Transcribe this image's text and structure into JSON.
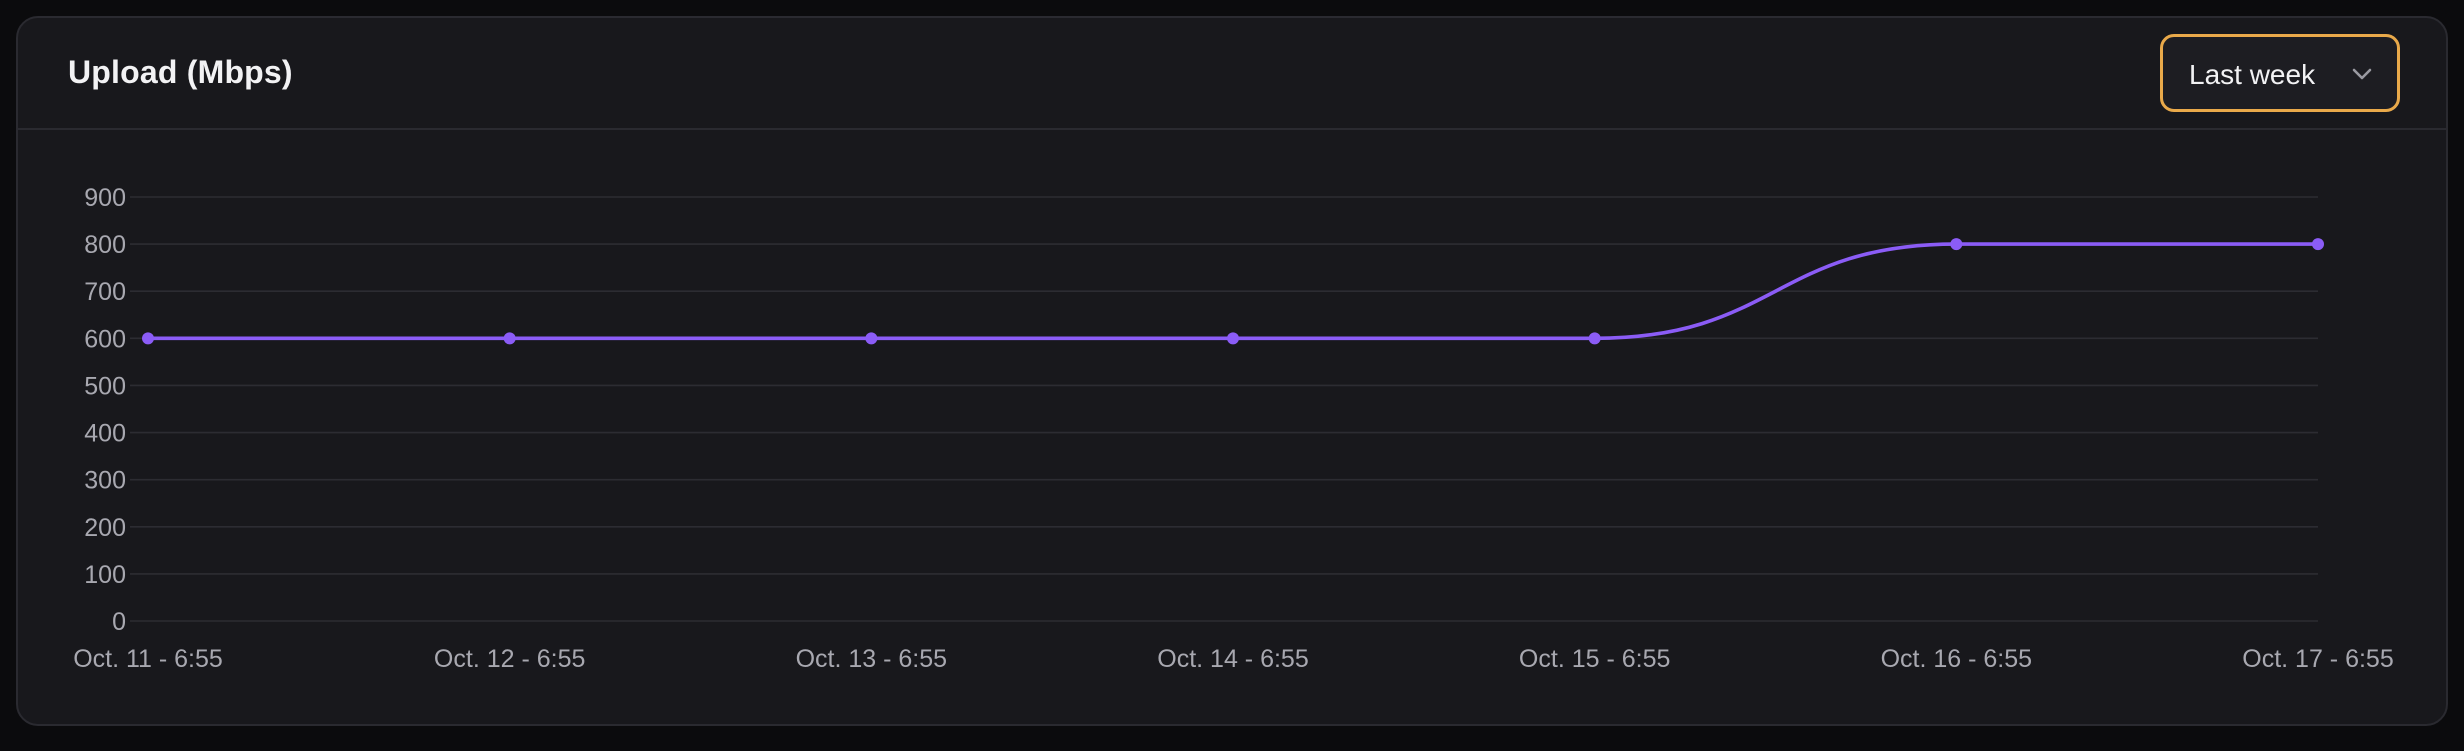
{
  "header": {
    "title": "Upload (Mbps)"
  },
  "range_select": {
    "selected": "Last week",
    "icon": "chevron-down-icon"
  },
  "colors": {
    "line": "#8b5cf6",
    "accent_border": "#e9a94a",
    "grid": "#2c2c32",
    "tick_label": "#a8a8b0"
  },
  "chart_data": {
    "type": "line",
    "title": "Upload (Mbps)",
    "xlabel": "",
    "ylabel": "",
    "categories": [
      "Oct. 11 - 6:55",
      "Oct. 12 - 6:55",
      "Oct. 13 - 6:55",
      "Oct. 14 - 6:55",
      "Oct. 15 - 6:55",
      "Oct. 16 - 6:55",
      "Oct. 17 - 6:55"
    ],
    "series": [
      {
        "values": [
          600,
          600,
          600,
          600,
          600,
          800,
          800
        ]
      }
    ],
    "yticks": [
      0,
      100,
      200,
      300,
      400,
      500,
      600,
      700,
      800,
      900
    ],
    "ylim": [
      0,
      900
    ],
    "grid": true,
    "smooth": true
  }
}
